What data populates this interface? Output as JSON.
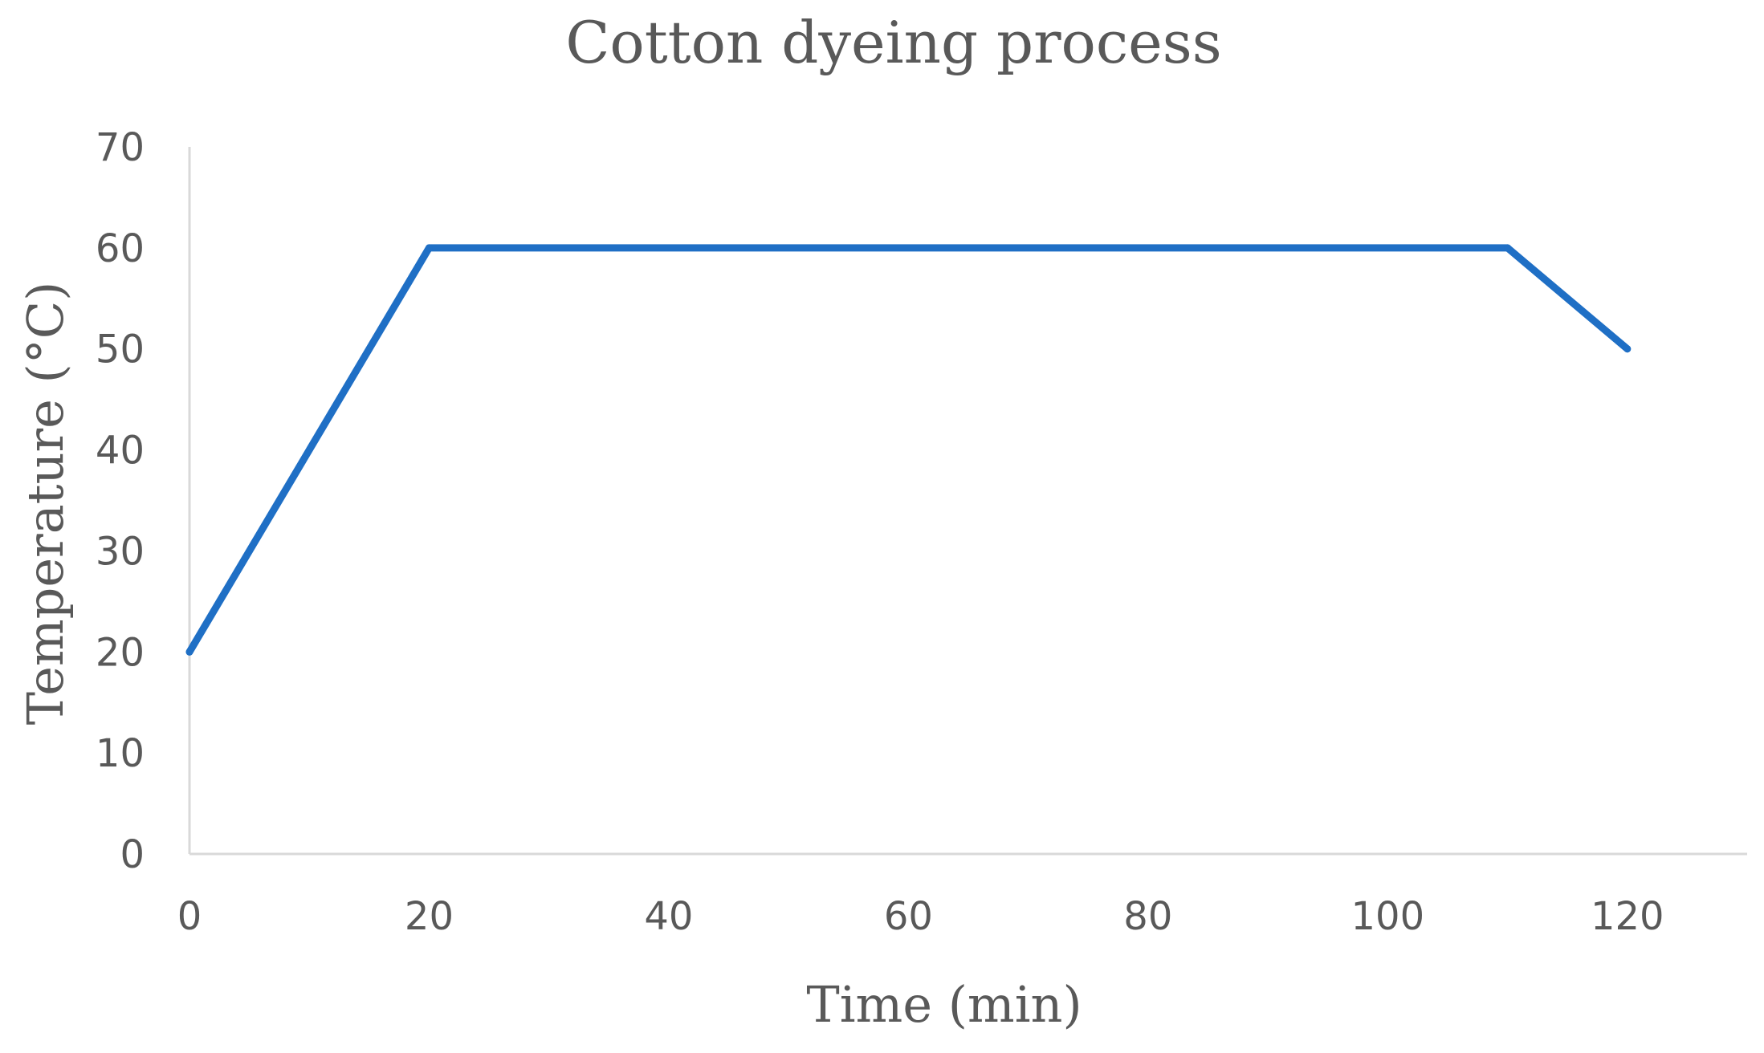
{
  "chart_data": {
    "type": "line",
    "title": "Cotton dyeing process",
    "xlabel": "Time (min)",
    "ylabel": "Temperature (°C)",
    "xlim": [
      0,
      130
    ],
    "ylim": [
      0,
      70
    ],
    "xticks": [
      0,
      20,
      40,
      60,
      80,
      100,
      120
    ],
    "yticks": [
      0,
      10,
      20,
      30,
      40,
      50,
      60,
      70
    ],
    "grid": false,
    "legend": "none",
    "series": [
      {
        "color": "#1f6fc5",
        "points": [
          {
            "x": 0,
            "y": 20
          },
          {
            "x": 20,
            "y": 60
          },
          {
            "x": 110,
            "y": 60
          },
          {
            "x": 120,
            "y": 50
          }
        ]
      }
    ],
    "colors": {
      "axis": "#d9d9d9",
      "text": "#595959",
      "line": "#1f6fc5"
    }
  }
}
